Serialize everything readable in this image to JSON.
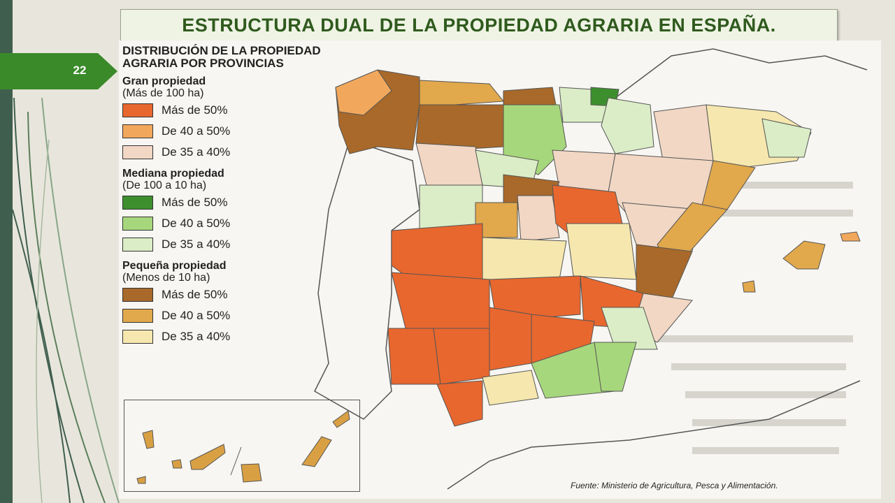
{
  "slide": {
    "title": "ESTRUCTURA DUAL DE LA PROPIEDAD AGRARIA EN ESPAÑA.",
    "number": "22",
    "accent_color": "#3a8a2a"
  },
  "map": {
    "legend": {
      "title_line1": "DISTRIBUCIÓN DE LA PROPIEDAD",
      "title_line2": "AGRARIA POR PROVINCIAS",
      "groups": [
        {
          "heading": "Gran propiedad",
          "subheading": "(Más de 100 ha)",
          "items": [
            {
              "label": "Más de 50%",
              "color": "#e8672e"
            },
            {
              "label": "De 40 a 50%",
              "color": "#f2a85c"
            },
            {
              "label": "De 35 a 40%",
              "color": "#f1d7c4"
            }
          ]
        },
        {
          "heading": "Mediana propiedad",
          "subheading": "(De 100 a 10 ha)",
          "items": [
            {
              "label": "Más de 50%",
              "color": "#3d8f2e"
            },
            {
              "label": "De 40 a 50%",
              "color": "#a7d77c"
            },
            {
              "label": "De 35 a 40%",
              "color": "#dbedc6"
            }
          ]
        },
        {
          "heading": "Pequeña propiedad",
          "subheading": "(Menos de 10 ha)",
          "items": [
            {
              "label": "Más de 50%",
              "color": "#a8692a"
            },
            {
              "label": "De 40 a 50%",
              "color": "#e1a84c"
            },
            {
              "label": "De 35 a 40%",
              "color": "#f5e7ae"
            }
          ]
        }
      ]
    },
    "source": "Fuente: Ministerio de Agricultura, Pesca y Alimentación."
  }
}
